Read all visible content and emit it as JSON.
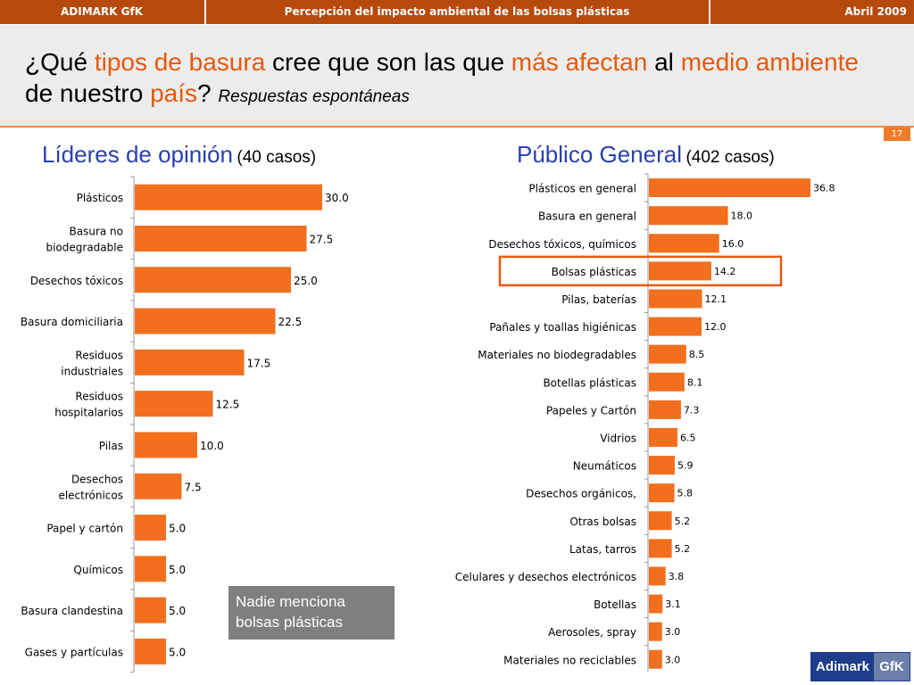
{
  "header": {
    "left": "ADIMARK GfK",
    "center": "Percepción del impacto ambiental de las bolsas plásticas",
    "right": "Abril 2009"
  },
  "title": {
    "p1": "¿Qué ",
    "h1": "tipos de basura",
    "p2": " cree que son las que ",
    "h2": "más afectan",
    "p3": " al ",
    "h3": "medio ambiente",
    "p4": " de nuestro ",
    "h4": "país",
    "p5": "?",
    "sub": "Respuestas espontáneas"
  },
  "page_number": "17",
  "note": "Nadie menciona bolsas plásticas",
  "logo": {
    "brand": "Adimark",
    "partner": "GfK"
  },
  "colors": {
    "bar": "#f26f1e",
    "accent": "#e8590c",
    "panel_title": "#2a3fb0",
    "header": "#b54a0c",
    "highlight_box": "#e8590c"
  },
  "chart_data": [
    {
      "type": "bar",
      "orientation": "horizontal",
      "title": "Líderes de opinión",
      "subtitle": "(40 casos)",
      "categories": [
        "Plásticos",
        "Basura no biodegradable",
        "Desechos tóxicos",
        "Basura domiciliaria",
        "Residuos industriales",
        "Residuos hospitalarios",
        "Pilas",
        "Desechos electrónicos",
        "Papel y cartón",
        "Químicos",
        "Basura clandestina",
        "Gases y partículas"
      ],
      "label_lines": [
        [
          "Plásticos"
        ],
        [
          "Basura no",
          "biodegradable"
        ],
        [
          "Desechos tóxicos"
        ],
        [
          "Basura domiciliaria"
        ],
        [
          "Residuos",
          "industriales"
        ],
        [
          "Residuos",
          "hospitalarios"
        ],
        [
          "Pilas"
        ],
        [
          "Desechos",
          "electrónicos"
        ],
        [
          "Papel y cartón"
        ],
        [
          "Químicos"
        ],
        [
          "Basura clandestina"
        ],
        [
          "Gases y partículas"
        ]
      ],
      "values": [
        30.0,
        27.5,
        25.0,
        22.5,
        17.5,
        12.5,
        10.0,
        7.5,
        5.0,
        5.0,
        5.0,
        5.0
      ],
      "value_labels": [
        "30.0",
        "27.5",
        "25.0",
        "22.5",
        "17.5",
        "12.5",
        "10.0",
        "7.5",
        "5.0",
        "5.0",
        "5.0",
        "5.0"
      ],
      "xlim": [
        0,
        32
      ]
    },
    {
      "type": "bar",
      "orientation": "horizontal",
      "title": "Público General",
      "subtitle": "(402 casos)",
      "categories": [
        "Plásticos en general",
        "Basura en general",
        "Desechos tóxicos, químicos",
        "Bolsas plásticas",
        "Pilas,  baterías",
        "Pañales y toallas higiénicas",
        "Materiales no biodegradables",
        "Botellas plásticas",
        "Papeles y Cartón",
        "Vidrios",
        "Neumáticos",
        "Desechos orgánicos,",
        "Otras bolsas",
        "Latas, tarros",
        "Celulares y desechos electrónicos",
        "Botellas",
        "Aerosoles, spray",
        "Materiales no reciclables"
      ],
      "values": [
        36.8,
        18.0,
        16.0,
        14.2,
        12.1,
        12.0,
        8.5,
        8.1,
        7.3,
        6.5,
        5.9,
        5.8,
        5.2,
        5.2,
        3.8,
        3.1,
        3.0,
        3.0
      ],
      "value_labels": [
        "36.8",
        "18.0",
        "16.0",
        "14.2",
        "12.1",
        "12.0",
        "8.5",
        "8.1",
        "7.3",
        "6.5",
        "5.9",
        "5.8",
        "5.2",
        "5.2",
        "3.8",
        "3.1",
        "3.0",
        "3.0"
      ],
      "highlighted": "Bolsas plásticas",
      "xlim": [
        0,
        38
      ]
    }
  ]
}
